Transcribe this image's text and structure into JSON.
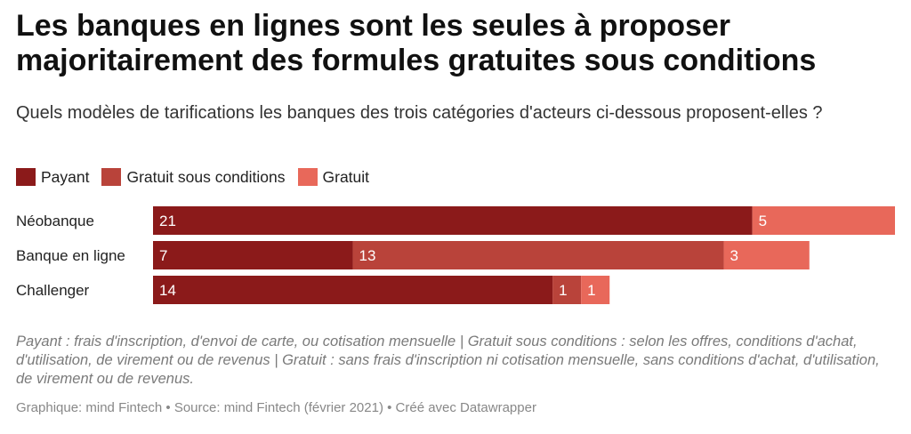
{
  "title": "Les banques en lignes sont les seules à proposer majoritairement des formules gratuites sous conditions",
  "subtitle": "Quels modèles de tarifications les banques des trois catégories d'acteurs ci-dessous proposent-elles ?",
  "notes": "Payant : frais d'inscription, d'envoi de carte, ou cotisation mensuelle | Gratuit sous conditions : selon les offres, conditions d'achat, d'utilisation, de virement ou de revenus | Gratuit : sans frais d'inscription ni cotisation mensuelle, sans conditions d'achat, d'utilisation, de virement ou de revenus.",
  "footer": "Graphique: mind Fintech • Source: mind Fintech (février 2021) • Créé avec Datawrapper",
  "chart_data": {
    "type": "bar",
    "orientation": "horizontal",
    "stacked": true,
    "categories": [
      "Néobanque",
      "Banque en ligne",
      "Challenger"
    ],
    "series": [
      {
        "name": "Payant",
        "color": "#8b1a1a",
        "values": [
          21,
          7,
          14
        ]
      },
      {
        "name": "Gratuit sous conditions",
        "color": "#b9433a",
        "values": [
          0,
          13,
          1
        ]
      },
      {
        "name": "Gratuit",
        "color": "#e8685a",
        "values": [
          5,
          3,
          1
        ]
      }
    ],
    "xlim": [
      0,
      26
    ],
    "legend": "top-left",
    "grid": false
  }
}
